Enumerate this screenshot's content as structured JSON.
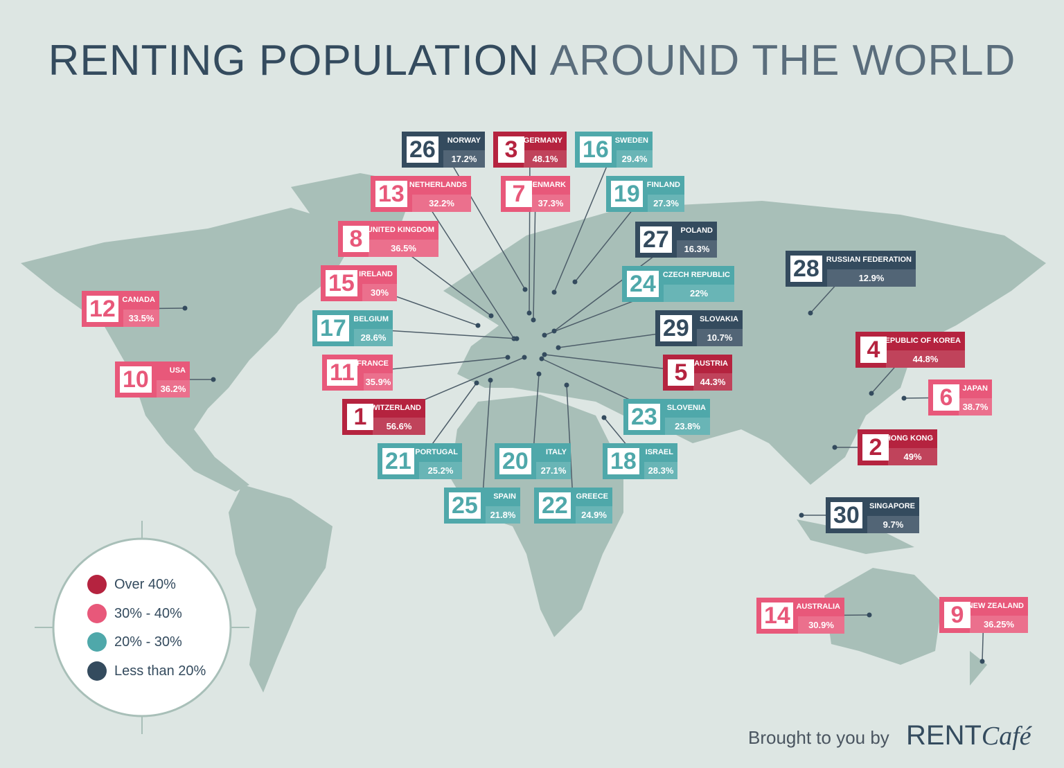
{
  "title": {
    "strong": "RENTING POPULATION",
    "light": "AROUND THE WORLD"
  },
  "legend": [
    {
      "label": "Over 40%",
      "color": "#b5233f"
    },
    {
      "label": "30% - 40%",
      "color": "#e8587a"
    },
    {
      "label": "20% - 30%",
      "color": "#4fa8aa"
    },
    {
      "label": "Less than 20%",
      "color": "#344b5e"
    }
  ],
  "countries": [
    {
      "rank": 1,
      "name": "SWITZERLAND",
      "value": "56.6%",
      "group": 0
    },
    {
      "rank": 2,
      "name": "HONG KONG",
      "value": "49%",
      "group": 0
    },
    {
      "rank": 3,
      "name": "GERMANY",
      "value": "48.1%",
      "group": 0
    },
    {
      "rank": 4,
      "name": "REPUBLIC OF KOREA",
      "value": "44.8%",
      "group": 0
    },
    {
      "rank": 5,
      "name": "AUSTRIA",
      "value": "44.3%",
      "group": 0
    },
    {
      "rank": 6,
      "name": "JAPAN",
      "value": "38.7%",
      "group": 1
    },
    {
      "rank": 7,
      "name": "DENMARK",
      "value": "37.3%",
      "group": 1
    },
    {
      "rank": 8,
      "name": "UNITED KINGDOM",
      "value": "36.5%",
      "group": 1
    },
    {
      "rank": 9,
      "name": "NEW ZEALAND",
      "value": "36.25%",
      "group": 1
    },
    {
      "rank": 10,
      "name": "USA",
      "value": "36.2%",
      "group": 1
    },
    {
      "rank": 11,
      "name": "FRANCE",
      "value": "35.9%",
      "group": 1
    },
    {
      "rank": 12,
      "name": "CANADA",
      "value": "33.5%",
      "group": 1
    },
    {
      "rank": 13,
      "name": "NETHERLANDS",
      "value": "32.2%",
      "group": 1
    },
    {
      "rank": 14,
      "name": "AUSTRALIA",
      "value": "30.9%",
      "group": 1
    },
    {
      "rank": 15,
      "name": "IRELAND",
      "value": "30%",
      "group": 1
    },
    {
      "rank": 16,
      "name": "SWEDEN",
      "value": "29.4%",
      "group": 2
    },
    {
      "rank": 17,
      "name": "BELGIUM",
      "value": "28.6%",
      "group": 2
    },
    {
      "rank": 18,
      "name": "ISRAEL",
      "value": "28.3%",
      "group": 2
    },
    {
      "rank": 19,
      "name": "FINLAND",
      "value": "27.3%",
      "group": 2
    },
    {
      "rank": 20,
      "name": "ITALY",
      "value": "27.1%",
      "group": 2
    },
    {
      "rank": 21,
      "name": "PORTUGAL",
      "value": "25.2%",
      "group": 2
    },
    {
      "rank": 22,
      "name": "GREECE",
      "value": "24.9%",
      "group": 2
    },
    {
      "rank": 23,
      "name": "SLOVENIA",
      "value": "23.8%",
      "group": 2
    },
    {
      "rank": 24,
      "name": "CZECH REPUBLIC",
      "value": "22%",
      "group": 2
    },
    {
      "rank": 25,
      "name": "SPAIN",
      "value": "21.8%",
      "group": 2
    },
    {
      "rank": 26,
      "name": "NORWAY",
      "value": "17.2%",
      "group": 3
    },
    {
      "rank": 27,
      "name": "POLAND",
      "value": "16.3%",
      "group": 3
    },
    {
      "rank": 28,
      "name": "RUSSIAN FEDERATION",
      "value": "12.9%",
      "group": 3
    },
    {
      "rank": 29,
      "name": "SLOVAKIA",
      "value": "10.7%",
      "group": 3
    },
    {
      "rank": 30,
      "name": "SINGAPORE",
      "value": "9.7%",
      "group": 3
    }
  ],
  "footer": {
    "text": "Brought to you by",
    "brand": "RENT",
    "brand_script": "Café"
  }
}
